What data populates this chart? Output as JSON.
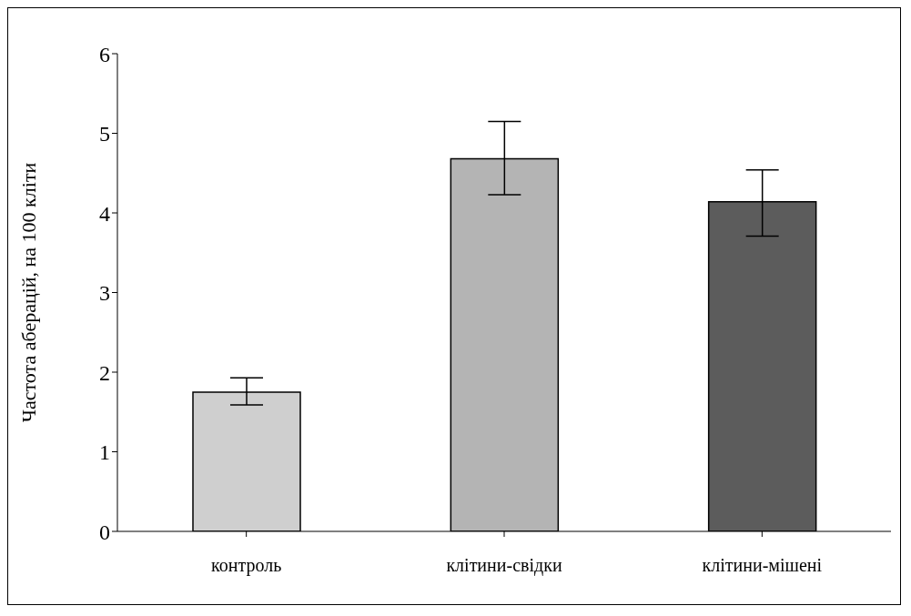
{
  "chart_data": {
    "type": "bar",
    "ylabel": "Частота аберацій, на 100 кліти",
    "categories": [
      "контроль",
      "клітини-свідки",
      "клітини-мішені"
    ],
    "values": [
      1.75,
      4.68,
      4.14
    ],
    "colors": [
      "#cfcfcf",
      "#b4b4b4",
      "#5c5c5c"
    ],
    "errors": [
      [
        1.59,
        1.93
      ],
      [
        4.23,
        5.15
      ],
      [
        3.71,
        4.54
      ]
    ],
    "ylim": [
      0,
      6
    ],
    "yticks": [
      0,
      1,
      2,
      3,
      4,
      5,
      6
    ],
    "grid": false,
    "legend": false
  }
}
